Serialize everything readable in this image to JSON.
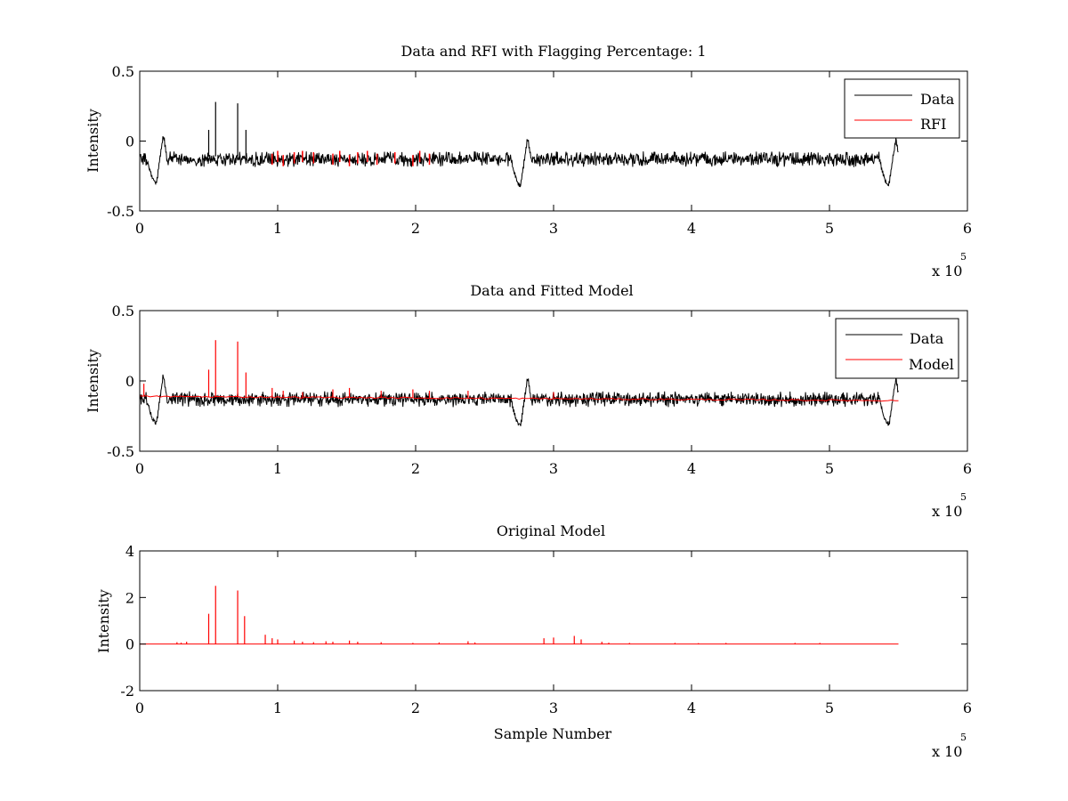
{
  "figure": {
    "background": "#ffffff",
    "colors": {
      "data": "#000000",
      "model": "#ff0000",
      "axes": "#000000"
    }
  },
  "chart_data": [
    {
      "type": "line",
      "title": "Data and RFI with Flagging Percentage: 1",
      "xlabel": "",
      "ylabel": "Intensity",
      "xlim": [
        0,
        600000
      ],
      "ylim": [
        -0.5,
        0.5
      ],
      "xticks": [
        0,
        1,
        2,
        3,
        4,
        5,
        6
      ],
      "yticks": [
        -0.5,
        0,
        0.5
      ],
      "ytick_labels": [
        "-0.5",
        "0",
        "0.5"
      ],
      "x_multiplier": "x 10",
      "x_multiplier_exp": "5",
      "grid": false,
      "legend": {
        "position": "top-right",
        "entries": [
          "Data",
          "RFI"
        ]
      },
      "baseline": -0.13,
      "noise": 0.035,
      "dips": [
        {
          "x": 12000,
          "depth": -0.3,
          "peak": 0.05,
          "x_peak": 17000
        },
        {
          "x": 276000,
          "depth": -0.32,
          "peak": 0.03,
          "x_peak": 281000
        },
        {
          "x": 543000,
          "depth": -0.31,
          "peak": 0.02,
          "x_peak": 548000
        }
      ],
      "x_end": 550000,
      "series": [
        {
          "name": "Data",
          "color": "#000000",
          "spikes": [
            [
              50000,
              0.08
            ],
            [
              55000,
              0.28
            ],
            [
              71000,
              0.27
            ],
            [
              77000,
              0.08
            ]
          ]
        },
        {
          "name": "RFI",
          "color": "#ff0000",
          "points": [
            [
              96000,
              -0.14
            ],
            [
              100000,
              -0.12
            ],
            [
              104000,
              -0.15
            ],
            [
              112000,
              -0.13
            ],
            [
              118000,
              -0.12
            ],
            [
              126000,
              -0.13
            ],
            [
              140000,
              -0.14
            ],
            [
              145000,
              -0.12
            ],
            [
              152000,
              -0.15
            ],
            [
              158000,
              -0.13
            ],
            [
              165000,
              -0.12
            ],
            [
              172000,
              -0.14
            ],
            [
              185000,
              -0.13
            ],
            [
              198000,
              -0.15
            ],
            [
              203000,
              -0.12
            ],
            [
              210000,
              -0.14
            ]
          ]
        }
      ]
    },
    {
      "type": "line",
      "title": "Data and Fitted Model",
      "xlabel": "",
      "ylabel": "Intensity",
      "xlim": [
        0,
        600000
      ],
      "ylim": [
        -0.5,
        0.5
      ],
      "xticks": [
        0,
        1,
        2,
        3,
        4,
        5,
        6
      ],
      "yticks": [
        -0.5,
        0,
        0.5
      ],
      "ytick_labels": [
        "-0.5",
        "0",
        "0.5"
      ],
      "x_multiplier": "x 10",
      "x_multiplier_exp": "5",
      "grid": false,
      "legend": {
        "position": "top-right",
        "entries": [
          "Data",
          "Model"
        ]
      },
      "baseline": -0.13,
      "noise": 0.035,
      "dips": [
        {
          "x": 12000,
          "depth": -0.3,
          "peak": 0.05,
          "x_peak": 17000
        },
        {
          "x": 276000,
          "depth": -0.32,
          "peak": 0.03,
          "x_peak": 281000
        },
        {
          "x": 543000,
          "depth": -0.31,
          "peak": 0.02,
          "x_peak": 548000
        }
      ],
      "x_end": 550000,
      "series": [
        {
          "name": "Data",
          "color": "#000000"
        },
        {
          "name": "Model",
          "color": "#ff0000",
          "level_start": -0.11,
          "level_end": -0.14,
          "spikes": [
            [
              50000,
              0.08
            ],
            [
              55000,
              0.29
            ],
            [
              71000,
              0.28
            ],
            [
              77000,
              0.06
            ],
            [
              96000,
              -0.05
            ],
            [
              104000,
              -0.07
            ],
            [
              118000,
              -0.08
            ],
            [
              140000,
              -0.06
            ],
            [
              152000,
              -0.05
            ],
            [
              175000,
              -0.07
            ],
            [
              198000,
              -0.06
            ],
            [
              210000,
              -0.07
            ],
            [
              238000,
              -0.07
            ],
            [
              300000,
              -0.08
            ],
            [
              3000,
              -0.02
            ]
          ]
        }
      ]
    },
    {
      "type": "line",
      "title": "Original Model",
      "xlabel": "Sample Number",
      "ylabel": "Intensity",
      "xlim": [
        0,
        600000
      ],
      "ylim": [
        -2,
        4
      ],
      "xticks": [
        0,
        1,
        2,
        3,
        4,
        5,
        6
      ],
      "yticks": [
        -2,
        0,
        2,
        4
      ],
      "ytick_labels": [
        "-2",
        "0",
        "2",
        "4"
      ],
      "x_multiplier": "x 10",
      "x_multiplier_exp": "5",
      "grid": false,
      "series": [
        {
          "name": "Model",
          "color": "#ff0000",
          "x_end": 550000,
          "spikes": [
            [
              27000,
              0.08
            ],
            [
              30000,
              0.06
            ],
            [
              34000,
              0.1
            ],
            [
              50000,
              1.3
            ],
            [
              55000,
              2.5
            ],
            [
              71000,
              2.3
            ],
            [
              76000,
              1.2
            ],
            [
              91000,
              0.4
            ],
            [
              96000,
              0.25
            ],
            [
              100000,
              0.2
            ],
            [
              112000,
              0.15
            ],
            [
              118000,
              0.1
            ],
            [
              126000,
              0.08
            ],
            [
              135000,
              0.12
            ],
            [
              140000,
              0.1
            ],
            [
              152000,
              0.15
            ],
            [
              158000,
              0.1
            ],
            [
              175000,
              0.08
            ],
            [
              198000,
              0.05
            ],
            [
              217000,
              0.07
            ],
            [
              238000,
              0.12
            ],
            [
              243000,
              0.07
            ],
            [
              293000,
              0.25
            ],
            [
              300000,
              0.28
            ],
            [
              315000,
              0.35
            ],
            [
              320000,
              0.2
            ],
            [
              335000,
              0.1
            ],
            [
              340000,
              0.06
            ],
            [
              355000,
              0.05
            ],
            [
              388000,
              0.05
            ],
            [
              405000,
              0.04
            ],
            [
              425000,
              0.05
            ],
            [
              475000,
              0.05
            ],
            [
              493000,
              0.05
            ]
          ]
        }
      ]
    }
  ]
}
